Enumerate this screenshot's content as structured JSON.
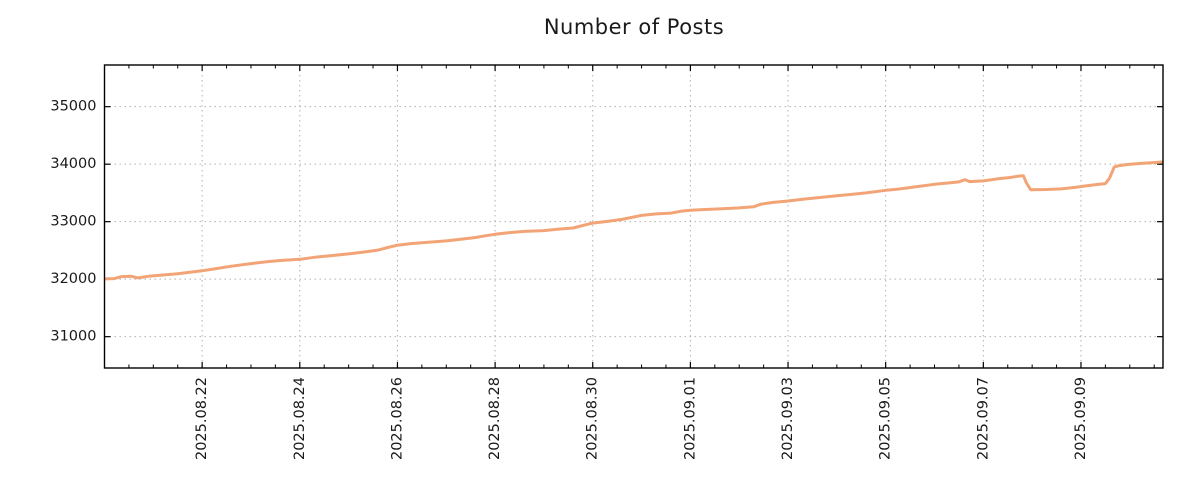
{
  "chart_data": {
    "type": "line",
    "title": "Number of Posts",
    "xlabel": "",
    "ylabel": "",
    "legend": {
      "show": false
    },
    "grid": {
      "show": true,
      "color": "#b0b0b0",
      "style": "dotted"
    },
    "axis_color": "#000000",
    "title_color": "#1a1a1a",
    "x_axis": {
      "start_date": "2025-08-20",
      "range_days": [
        0,
        21.68
      ],
      "minor_tick_step_days": 0.5,
      "major_ticks": [
        {
          "day": 2,
          "label": "2025.08.22"
        },
        {
          "day": 4,
          "label": "2025.08.24"
        },
        {
          "day": 6,
          "label": "2025.08.26"
        },
        {
          "day": 8,
          "label": "2025.08.28"
        },
        {
          "day": 10,
          "label": "2025.08.30"
        },
        {
          "day": 12,
          "label": "2025.09.01"
        },
        {
          "day": 14,
          "label": "2025.09.03"
        },
        {
          "day": 16,
          "label": "2025.09.05"
        },
        {
          "day": 18,
          "label": "2025.09.07"
        },
        {
          "day": 20,
          "label": "2025.09.09"
        }
      ]
    },
    "y_axis": {
      "range": [
        30455,
        35725
      ],
      "major_ticks": [
        31000,
        32000,
        33000,
        34000,
        35000
      ],
      "major_tick_labels": [
        "31000",
        "32000",
        "33000",
        "34000",
        "35000"
      ]
    },
    "series": [
      {
        "name": "number-of-posts",
        "color": "#f2a477",
        "line_width": 3,
        "points_day_value": [
          [
            0,
            32005
          ],
          [
            0.2,
            32010
          ],
          [
            0.35,
            32045
          ],
          [
            0.55,
            32050
          ],
          [
            0.68,
            32022
          ],
          [
            0.9,
            32050
          ],
          [
            1.2,
            32072
          ],
          [
            1.5,
            32095
          ],
          [
            1.75,
            32120
          ],
          [
            2,
            32145
          ],
          [
            2.3,
            32185
          ],
          [
            2.6,
            32225
          ],
          [
            3,
            32270
          ],
          [
            3.3,
            32300
          ],
          [
            3.6,
            32325
          ],
          [
            4,
            32345
          ],
          [
            4.3,
            32380
          ],
          [
            4.6,
            32405
          ],
          [
            5,
            32440
          ],
          [
            5.3,
            32470
          ],
          [
            5.6,
            32505
          ],
          [
            5.8,
            32550
          ],
          [
            6,
            32590
          ],
          [
            6.3,
            32620
          ],
          [
            6.6,
            32640
          ],
          [
            7,
            32665
          ],
          [
            7.3,
            32695
          ],
          [
            7.6,
            32725
          ],
          [
            7.8,
            32755
          ],
          [
            8,
            32780
          ],
          [
            8.3,
            32810
          ],
          [
            8.6,
            32830
          ],
          [
            9,
            32845
          ],
          [
            9.3,
            32870
          ],
          [
            9.6,
            32890
          ],
          [
            9.8,
            32935
          ],
          [
            10,
            32975
          ],
          [
            10.3,
            33005
          ],
          [
            10.6,
            33040
          ],
          [
            10.8,
            33075
          ],
          [
            11,
            33110
          ],
          [
            11.3,
            33135
          ],
          [
            11.6,
            33150
          ],
          [
            11.8,
            33180
          ],
          [
            12,
            33200
          ],
          [
            12.3,
            33212
          ],
          [
            12.6,
            33222
          ],
          [
            13,
            33240
          ],
          [
            13.3,
            33260
          ],
          [
            13.45,
            33305
          ],
          [
            13.7,
            33335
          ],
          [
            14,
            33360
          ],
          [
            14.3,
            33390
          ],
          [
            14.6,
            33415
          ],
          [
            15,
            33450
          ],
          [
            15.3,
            33475
          ],
          [
            15.6,
            33500
          ],
          [
            16,
            33545
          ],
          [
            16.3,
            33570
          ],
          [
            16.6,
            33605
          ],
          [
            17,
            33650
          ],
          [
            17.3,
            33675
          ],
          [
            17.5,
            33692
          ],
          [
            17.62,
            33730
          ],
          [
            17.72,
            33697
          ],
          [
            18,
            33710
          ],
          [
            18.3,
            33745
          ],
          [
            18.55,
            33768
          ],
          [
            18.72,
            33792
          ],
          [
            18.82,
            33800
          ],
          [
            18.88,
            33680
          ],
          [
            18.97,
            33555
          ],
          [
            19.3,
            33560
          ],
          [
            19.6,
            33570
          ],
          [
            19.9,
            33600
          ],
          [
            20.1,
            33622
          ],
          [
            20.35,
            33648
          ],
          [
            20.5,
            33662
          ],
          [
            20.58,
            33750
          ],
          [
            20.68,
            33950
          ],
          [
            20.78,
            33975
          ],
          [
            20.95,
            33995
          ],
          [
            21.2,
            34012
          ],
          [
            21.45,
            34025
          ],
          [
            21.68,
            34040
          ]
        ]
      }
    ]
  }
}
